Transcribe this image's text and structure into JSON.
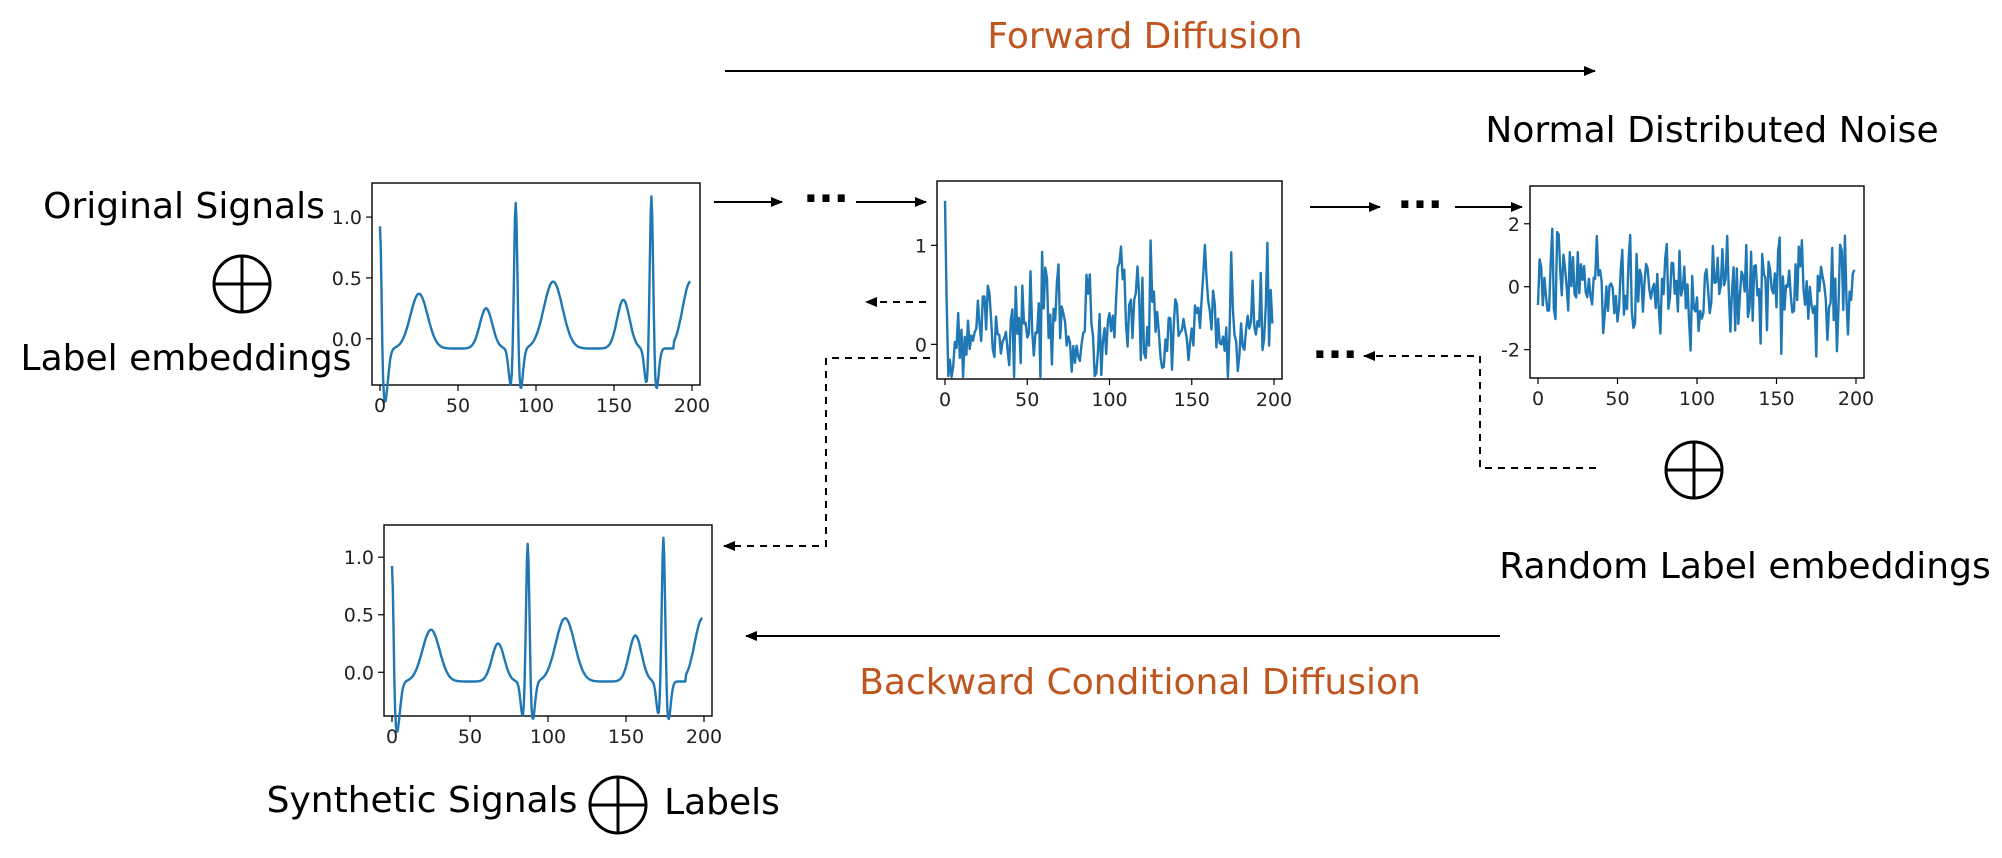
{
  "labels": {
    "forward": "Forward Diffusion",
    "backward": "Backward Conditional Diffusion",
    "noise": "Normal Distributed Noise",
    "original": "Original Signals",
    "label_embeddings": "Label embeddings",
    "random_label_embeddings": "Random Label embeddings",
    "synthetic": "Synthetic Signals",
    "labels": "Labels",
    "ellipsis": "···"
  },
  "colors": {
    "accent": "#c0561f",
    "signal": "#1f77b4",
    "ink": "#000000"
  },
  "icons": [
    "circled-plus-icon",
    "arrow-right-icon",
    "arrow-left-icon",
    "dashed-arrow-icon"
  ],
  "chart_data": [
    {
      "type": "line",
      "name": "original-signal",
      "signal_kind": "ecg",
      "xlim": [
        0,
        200
      ],
      "ylim": [
        -0.38,
        1.28
      ],
      "xticks": [
        0,
        50,
        100,
        150,
        200
      ],
      "yticks": [
        "0.0",
        "0.5",
        "1.0"
      ],
      "ytick_values": [
        0,
        0.5,
        1.0
      ]
    },
    {
      "type": "line",
      "name": "intermediate-noisy-signal",
      "signal_kind": "noisy-ecg",
      "xlim": [
        0,
        200
      ],
      "ylim": [
        -0.35,
        1.65
      ],
      "xticks": [
        0,
        50,
        100,
        150,
        200
      ],
      "yticks": [
        "0",
        "1"
      ],
      "ytick_values": [
        0,
        1
      ]
    },
    {
      "type": "line",
      "name": "noise-signal",
      "signal_kind": "noise",
      "xlim": [
        0,
        200
      ],
      "ylim": [
        -2.9,
        3.2
      ],
      "xticks": [
        0,
        50,
        100,
        150,
        200
      ],
      "yticks": [
        "-2",
        "0",
        "2"
      ],
      "ytick_values": [
        -2,
        0,
        2
      ]
    },
    {
      "type": "line",
      "name": "synthetic-signal",
      "signal_kind": "ecg",
      "xlim": [
        0,
        200
      ],
      "ylim": [
        -0.38,
        1.28
      ],
      "xticks": [
        0,
        50,
        100,
        150,
        200
      ],
      "yticks": [
        "0.0",
        "0.5",
        "1.0"
      ],
      "ytick_values": [
        0,
        0.5,
        1.0
      ]
    }
  ]
}
